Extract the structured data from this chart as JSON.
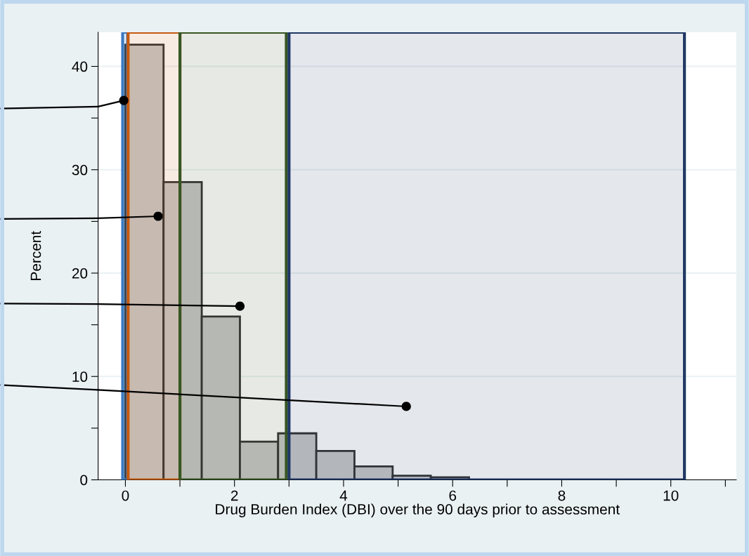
{
  "chart_data": {
    "type": "histogram",
    "xlabel": "Drug Burden Index (DBI) over the 90 days prior to assessment",
    "ylabel": "Percent",
    "bins": [
      0,
      0.7,
      1.4,
      2.1,
      2.8,
      3.5,
      4.2,
      4.9,
      5.6,
      6.3,
      7.0,
      7.7,
      8.4,
      9.1,
      9.8,
      10.5
    ],
    "values": [
      42.1,
      28.8,
      15.8,
      3.7,
      4.5,
      2.8,
      1.3,
      0.4,
      0.25,
      null,
      null,
      null,
      null,
      null,
      null
    ],
    "color": "#c8c8c8",
    "series": [
      {
        "type": "scatter",
        "color": "#000000",
        "x": [
          -0.03,
          0.6,
          2.1,
          5.15
        ],
        "values": [
          36.7,
          25.5,
          16.8,
          7.1
        ]
      },
      {
        "type": "line",
        "color": "#000000",
        "marker": "none",
        "x": [
          -0.5,
          -0.03
        ],
        "values": [
          36.1,
          36.7
        ]
      },
      {
        "type": "line",
        "color": "#000000",
        "marker": "none",
        "x": [
          -0.5,
          0.6
        ],
        "values": [
          25.3,
          25.5
        ]
      },
      {
        "type": "line",
        "color": "#000000",
        "marker": "none",
        "x": [
          -0.5,
          2.1
        ],
        "values": [
          17.0,
          16.8
        ]
      },
      {
        "type": "line",
        "color": "#000000",
        "marker": "none",
        "x": [
          -0.5,
          5.15
        ],
        "values": [
          8.7,
          7.1
        ]
      }
    ],
    "bands": [
      {
        "axis": "x",
        "from": -0.05,
        "to": 0.04,
        "color": "#3a7ac0"
      },
      {
        "axis": "x",
        "from": 0.05,
        "to": 1.0,
        "color": "#c55a11"
      },
      {
        "axis": "x",
        "from": 1.0,
        "to": 2.95,
        "color": "#375623"
      },
      {
        "axis": "x",
        "from": 3.0,
        "to": 10.25,
        "color": "#203864"
      }
    ],
    "xlim": [
      -0.5,
      11.2
    ],
    "xticks": [
      0,
      {
        "value": 1,
        "label": null
      },
      2,
      {
        "value": 3,
        "label": null
      },
      4,
      {
        "value": 5,
        "label": null
      },
      6,
      {
        "value": 7,
        "label": null
      },
      8,
      {
        "value": 9,
        "label": null
      },
      10,
      {
        "value": 11,
        "label": null
      }
    ],
    "ylim": [
      0,
      43.3
    ],
    "yticks": [
      0,
      {
        "value": 5,
        "label": null
      },
      10,
      {
        "value": 15,
        "label": null
      },
      20,
      {
        "value": 25,
        "label": null
      },
      30,
      {
        "value": 35,
        "label": null
      },
      40
    ],
    "grid": "y",
    "marker": "circle"
  }
}
